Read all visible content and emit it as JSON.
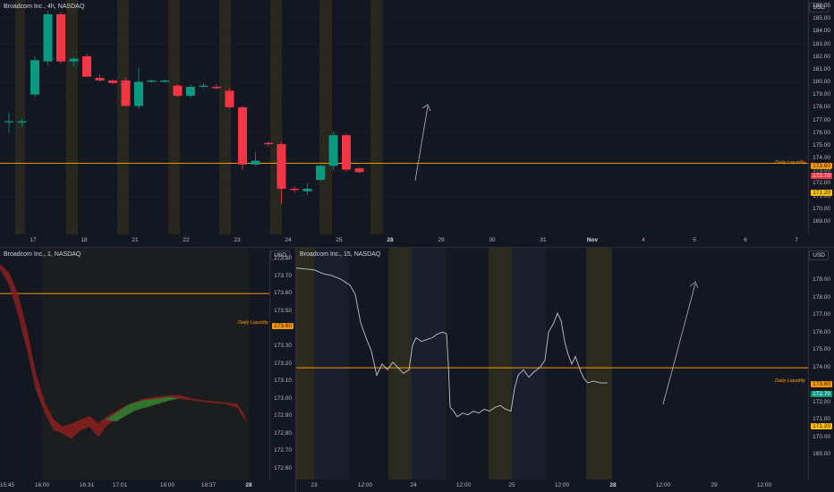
{
  "top_chart": {
    "title": "Broadcom Inc., 4h, NASDAQ",
    "currency_button": "USD",
    "price_labels": [
      "186.00",
      "185.00",
      "184.00",
      "183.00",
      "182.00",
      "181.00",
      "180.00",
      "179.00",
      "178.00",
      "177.00",
      "176.00",
      "175.00",
      "174.00",
      "173.00",
      "172.00",
      "171.00",
      "170.00",
      "169.00"
    ],
    "time_labels": [
      "17",
      "18",
      "21",
      "22",
      "23",
      "24",
      "25",
      "28",
      "29",
      "30",
      "31",
      "Nov",
      "4",
      "5",
      "6",
      "7"
    ],
    "liquidity_label": "Daily Liquidity",
    "liquidity_price": "173.60",
    "current_price_tag": "172.70",
    "low_tag": "171.20",
    "colors": {
      "up": "#089981",
      "down": "#f23645",
      "liquidity": "#ff9800",
      "session": "#2b2a1e"
    }
  },
  "bottom_left_chart": {
    "title": "Broadcom Inc., 1, NASDAQ",
    "currency_button": "USD",
    "price_labels": [
      "173.80",
      "173.70",
      "173.60",
      "173.50",
      "173.40",
      "173.30",
      "173.20",
      "173.10",
      "173.00",
      "172.90",
      "172.80",
      "172.70",
      "172.60"
    ],
    "time_labels": [
      "15:45",
      "16:00",
      "16:31",
      "17:01",
      "18:00",
      "18:37",
      "28"
    ],
    "liquidity_label": "Daily Liquidity",
    "liquidity_price": "173.60"
  },
  "bottom_right_chart": {
    "title": "Broadcom Inc., 15, NASDAQ",
    "currency_button": "USD",
    "price_labels": [
      "179.00",
      "178.00",
      "177.00",
      "176.00",
      "175.00",
      "174.00",
      "173.00",
      "172.00",
      "171.00",
      "170.00",
      "169.00"
    ],
    "time_labels": [
      "23",
      "12:00",
      "24",
      "12:00",
      "25",
      "12:00",
      "28",
      "12:00",
      "29",
      "12:00"
    ],
    "liquidity_label": "Daily Liquidity",
    "liquidity_price": "173.60",
    "current_price_tag": "172.70",
    "low_tag": "171.20"
  },
  "chart_data": [
    {
      "type": "candlestick",
      "title": "Broadcom Inc., 4h, NASDAQ",
      "ylim": [
        168.5,
        186.5
      ],
      "candles": [
        {
          "o": 176.9,
          "h": 177.6,
          "l": 176.0,
          "c": 176.9
        },
        {
          "o": 176.8,
          "h": 177.1,
          "l": 176.5,
          "c": 176.9
        },
        {
          "o": 179.0,
          "h": 182.0,
          "l": 178.8,
          "c": 181.7
        },
        {
          "o": 181.6,
          "h": 185.6,
          "l": 181.3,
          "c": 185.3
        },
        {
          "o": 185.3,
          "h": 185.5,
          "l": 181.4,
          "c": 181.6
        },
        {
          "o": 181.6,
          "h": 182.0,
          "l": 181.2,
          "c": 181.8
        },
        {
          "o": 182.0,
          "h": 182.2,
          "l": 180.4,
          "c": 180.4
        },
        {
          "o": 180.3,
          "h": 180.6,
          "l": 180.0,
          "c": 180.1
        },
        {
          "o": 180.1,
          "h": 180.2,
          "l": 179.8,
          "c": 179.9
        },
        {
          "o": 180.1,
          "h": 180.3,
          "l": 178.1,
          "c": 178.1
        },
        {
          "o": 178.1,
          "h": 181.1,
          "l": 177.9,
          "c": 180.0
        },
        {
          "o": 180.0,
          "h": 180.2,
          "l": 179.9,
          "c": 180.1
        },
        {
          "o": 180.0,
          "h": 180.2,
          "l": 179.9,
          "c": 180.1
        },
        {
          "o": 179.7,
          "h": 179.8,
          "l": 178.8,
          "c": 178.9
        },
        {
          "o": 178.9,
          "h": 179.8,
          "l": 178.7,
          "c": 179.6
        },
        {
          "o": 179.6,
          "h": 179.9,
          "l": 179.5,
          "c": 179.7
        },
        {
          "o": 179.6,
          "h": 179.8,
          "l": 179.4,
          "c": 179.5
        },
        {
          "o": 179.3,
          "h": 179.5,
          "l": 177.9,
          "c": 178.0
        },
        {
          "o": 178.0,
          "h": 178.1,
          "l": 173.1,
          "c": 173.5
        },
        {
          "o": 173.5,
          "h": 174.5,
          "l": 173.4,
          "c": 173.8
        },
        {
          "o": 175.2,
          "h": 175.3,
          "l": 174.9,
          "c": 175.1
        },
        {
          "o": 175.1,
          "h": 175.3,
          "l": 170.4,
          "c": 171.6
        },
        {
          "o": 171.6,
          "h": 171.8,
          "l": 171.3,
          "c": 171.5
        },
        {
          "o": 171.4,
          "h": 172.0,
          "l": 171.1,
          "c": 171.6
        },
        {
          "o": 172.3,
          "h": 173.5,
          "l": 172.2,
          "c": 173.4
        },
        {
          "o": 173.4,
          "h": 176.1,
          "l": 173.1,
          "c": 175.8
        },
        {
          "o": 175.8,
          "h": 175.9,
          "l": 172.9,
          "c": 173.1
        },
        {
          "o": 173.2,
          "h": 173.3,
          "l": 172.8,
          "c": 172.9
        }
      ],
      "liquidity_level": 173.6,
      "projection_arrow": {
        "from": [
          172.3,
          "29"
        ],
        "to": [
          178.6,
          "29"
        ]
      }
    },
    {
      "type": "area",
      "title": "Broadcom Inc., 1, NASDAQ",
      "ylim": [
        172.6,
        173.85
      ],
      "liquidity_level": 173.6
    },
    {
      "type": "line",
      "title": "Broadcom Inc., 15, NASDAQ",
      "ylim": [
        168.5,
        179.6
      ],
      "liquidity_level": 173.6
    }
  ]
}
